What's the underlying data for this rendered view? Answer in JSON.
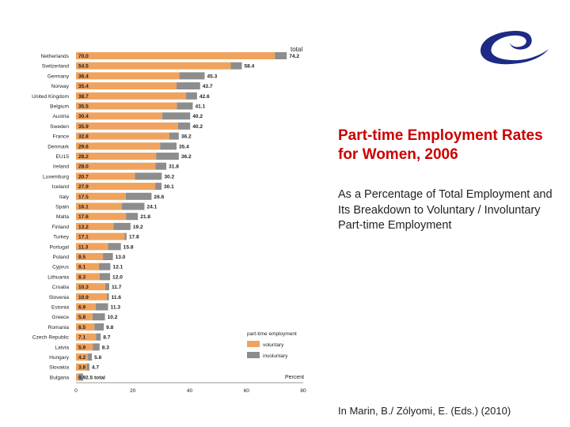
{
  "title": "Part-time Employment Rates for Women, 2006",
  "subtitle": "As a Percentage of Total Employment and Its Breakdown to Voluntary / Involuntary Part-time Employment",
  "citation": "In Marin, B./ Zólyomi, E. (Eds.) (2010)",
  "colors": {
    "voluntary": "#f0a35e",
    "involuntary": "#8d8d8d",
    "logo": "#1d2a86",
    "title": "#cc0000"
  },
  "logo_icon": "council-of-europe-swirl-icon",
  "chart_data": {
    "type": "bar",
    "orientation": "horizontal",
    "stacked": true,
    "xlabel": "Percent",
    "xlim": [
      0,
      80
    ],
    "x_ticks": [
      "0",
      "20",
      "40",
      "60",
      "80"
    ],
    "total_header": "total",
    "legend": {
      "title": "part-time employment",
      "placement": "bottom-right"
    },
    "categories": [
      "Netherlands",
      "Switzerland",
      "Germany",
      "Norway",
      "United Kingdom",
      "Belgium",
      "Austria",
      "Sweden",
      "France",
      "Denmark",
      "EU15",
      "Ireland",
      "Luxemburg",
      "Iceland",
      "Italy",
      "Spain",
      "Malta",
      "Finland",
      "Turkey",
      "Portugal",
      "Poland",
      "Cyprus",
      "Lithuania",
      "Croatia",
      "Slovenia",
      "Estonia",
      "Greece",
      "Romania",
      "Czech Republic",
      "Latvia",
      "Hungary",
      "Slovakia",
      "Bulgaria"
    ],
    "voluntary_labels": [
      "70.0",
      "54.5",
      "36.4",
      "35.4",
      "38.7",
      "35.5",
      "30.4",
      "35.9",
      "32.8",
      "29.6",
      "28.2",
      "28.0",
      "20.7",
      "27.9",
      "17.5",
      "16.1",
      "17.6",
      "13.2",
      "17.1",
      "11.3",
      "9.5",
      "8.1",
      "8.3",
      "10.3",
      "10.9",
      "6.9",
      "5.8",
      "6.5",
      "7.1",
      "5.9",
      "4.2",
      "3.8",
      "0.9"
    ],
    "total_labels": [
      "74.2",
      "58.4",
      "45.3",
      "43.7",
      "42.6",
      "41.1",
      "40.2",
      "40.2",
      "36.2",
      "35.4",
      "36.2",
      "31.8",
      "30.2",
      "30.1",
      "26.6",
      "24.1",
      "21.8",
      "19.2",
      "17.8",
      "15.8",
      "13.0",
      "12.1",
      "12.0",
      "11.7",
      "11.6",
      "11.3",
      "10.2",
      "9.8",
      "8.7",
      "8.3",
      "5.6",
      "4.7",
      "2.5 total"
    ],
    "series": [
      {
        "name": "voluntary",
        "values": [
          70.0,
          54.5,
          36.4,
          35.4,
          38.7,
          35.5,
          30.4,
          35.9,
          32.8,
          29.6,
          28.2,
          28.0,
          20.7,
          27.9,
          17.5,
          16.1,
          17.6,
          13.2,
          17.1,
          11.3,
          9.5,
          8.1,
          8.3,
          10.3,
          10.9,
          6.9,
          5.8,
          6.5,
          7.1,
          5.9,
          4.2,
          3.8,
          0.9
        ]
      },
      {
        "name": "involuntary",
        "values": [
          4.2,
          3.9,
          8.9,
          8.3,
          3.9,
          5.6,
          9.8,
          4.3,
          3.4,
          5.8,
          8.0,
          3.8,
          9.5,
          2.2,
          9.1,
          8.0,
          4.2,
          6.0,
          0.7,
          4.5,
          3.5,
          4.0,
          3.7,
          1.4,
          0.7,
          4.4,
          4.4,
          3.3,
          1.6,
          2.4,
          1.4,
          0.9,
          1.6
        ]
      }
    ]
  }
}
